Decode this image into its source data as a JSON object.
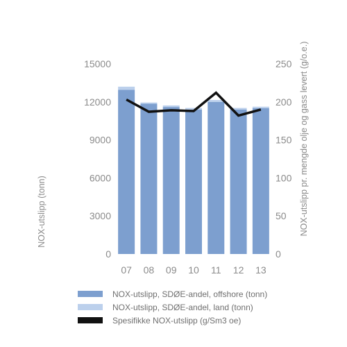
{
  "chart_data": {
    "type": "bar",
    "categories": [
      "07",
      "08",
      "09",
      "10",
      "11",
      "12",
      "13"
    ],
    "series": [
      {
        "name": "NOX-utslipp, SDØE-andel, offshore (tonn)",
        "kind": "stacked-bar",
        "axis": "left",
        "color": "#7d9fcf",
        "values": [
          12950,
          11850,
          11600,
          11400,
          12000,
          11400,
          11500
        ]
      },
      {
        "name": "NOX-utslipp, SDØE-andel, land (tonn)",
        "kind": "stacked-bar",
        "axis": "left",
        "color": "#bcd0ec",
        "values": [
          250,
          100,
          120,
          120,
          150,
          120,
          120
        ]
      },
      {
        "name": "Spesifikke NOX-utslipp (g/Sm3 oe)",
        "kind": "line",
        "axis": "right",
        "color": "#111111",
        "values": [
          203,
          187,
          189,
          188,
          212,
          182,
          190
        ]
      }
    ],
    "ylabel": "NOX-utslipp (tonn)",
    "ylabel_right": "NOX-utslipp pr. mengde olje og gass levert (g/o.e.)",
    "ylim": [
      0,
      15000
    ],
    "yticks": [
      "0",
      "3000",
      "6000",
      "9000",
      "12000",
      "15000"
    ],
    "ylim_right": [
      0,
      250
    ],
    "yticks_right": [
      "0",
      "50",
      "100",
      "150",
      "200",
      "250"
    ],
    "grid": false,
    "legend_position": "bottom"
  }
}
